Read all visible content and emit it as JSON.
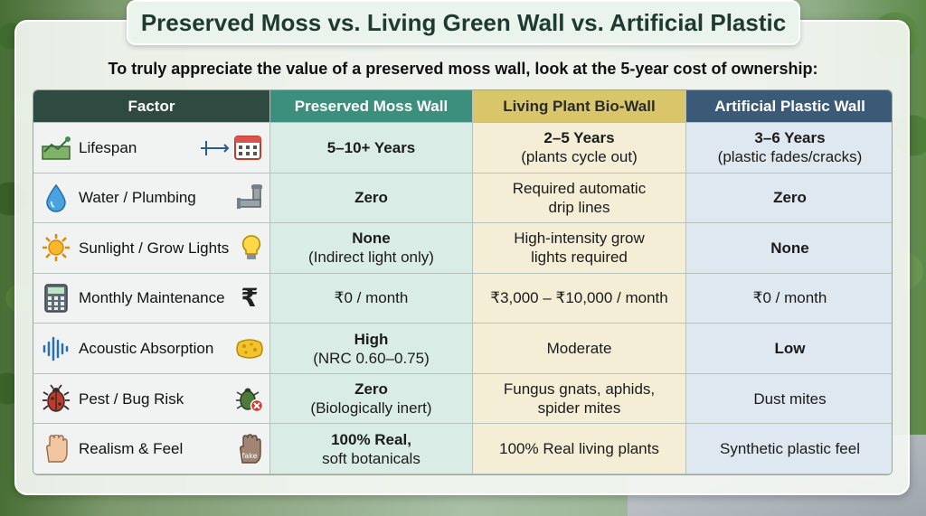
{
  "title": "Preserved Moss vs. Living Green Wall vs. Artificial Plastic",
  "subtitle": "To truly appreciate the value of a preserved moss wall, look at the 5-year cost of ownership:",
  "headers": {
    "factor": "Factor",
    "moss": "Preserved Moss Wall",
    "living": "Living Plant Bio-Wall",
    "plastic": "Artificial Plastic Wall"
  },
  "colors": {
    "factor_header": "#2f4a40",
    "moss_header": "#3c8f7c",
    "living_header": "#d9c66a",
    "plastic_header": "#3a5a78"
  },
  "rows": [
    {
      "factor": "Lifespan",
      "icon_left": "growth-chart-icon",
      "icon_right": "calendar-icon",
      "moss": [
        "5–10+ Years"
      ],
      "living": [
        "2–5 Years",
        "(plants cycle out)"
      ],
      "plastic": [
        "3–6 Years",
        "(plastic fades/cracks)"
      ]
    },
    {
      "factor": "Water / Plumbing",
      "icon_left": "water-drop-icon",
      "icon_right": "pipe-icon",
      "moss": [
        "Zero"
      ],
      "living": [
        "Required automatic",
        "drip lines"
      ],
      "plastic": [
        "Zero"
      ]
    },
    {
      "factor": "Sunlight / Grow Lights",
      "icon_left": "sun-icon",
      "icon_right": "light-bulb-icon",
      "moss": [
        "None",
        "(Indirect light only)"
      ],
      "living": [
        "High-intensity grow",
        "lights required"
      ],
      "plastic": [
        "None"
      ]
    },
    {
      "factor": "Monthly Maintenance",
      "icon_left": "calculator-icon",
      "icon_right": "rupee-icon",
      "rupee": "₹",
      "moss": [
        "₹0 / month"
      ],
      "living": [
        "₹3,000 – ₹10,000 / month"
      ],
      "plastic": [
        "₹0 / month"
      ]
    },
    {
      "factor": "Acoustic Absorption",
      "icon_left": "sound-wave-icon",
      "icon_right": "sponge-icon",
      "moss": [
        "High",
        "(NRC 0.60–0.75)"
      ],
      "living": [
        "Moderate"
      ],
      "plastic": [
        "Low"
      ]
    },
    {
      "factor": "Pest / Bug Risk",
      "icon_left": "bug-icon",
      "icon_right": "no-bug-icon",
      "moss": [
        "Zero",
        "(Biologically inert)"
      ],
      "living": [
        "Fungus gnats, aphids,",
        "spider mites"
      ],
      "plastic": [
        "Dust mites"
      ]
    },
    {
      "factor": "Realism & Feel",
      "icon_left": "hand-icon",
      "icon_right": "fake-hand-icon",
      "fake_label": "fake",
      "moss": [
        "100% Real,",
        "soft botanicals"
      ],
      "living": [
        "100% Real living plants"
      ],
      "plastic": [
        "Synthetic plastic feel"
      ]
    }
  ]
}
